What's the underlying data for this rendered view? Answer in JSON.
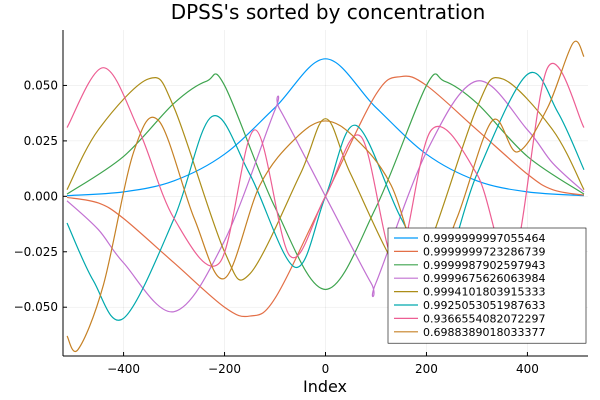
{
  "chart_data": {
    "type": "line",
    "title": "DPSS's sorted by concentration",
    "xlabel": "Index",
    "ylabel": "",
    "xlim": [
      -520,
      520
    ],
    "ylim": [
      -0.072,
      0.075
    ],
    "xticks": [
      -400,
      -200,
      0,
      200,
      400
    ],
    "xtick_labels": [
      "−400",
      "−200",
      "0",
      "200",
      "400"
    ],
    "yticks": [
      -0.05,
      -0.025,
      0,
      0.025,
      0.05
    ],
    "ytick_labels": [
      "−0.050",
      "−0.025",
      "0.000",
      "0.025",
      "0.050"
    ],
    "grid": true,
    "legend_position": "bottom-right",
    "series": [
      {
        "name": "0.9999999997055464",
        "color": "#009AFA",
        "x": [
          -512,
          -400,
          -300,
          -200,
          -100,
          0,
          100,
          200,
          300,
          400,
          512
        ],
        "y": [
          0.0003,
          0.002,
          0.007,
          0.019,
          0.04,
          0.062,
          0.04,
          0.019,
          0.007,
          0.002,
          0.0003
        ]
      },
      {
        "name": "0.9999999723286739",
        "color": "#E36F47",
        "x": [
          -512,
          -450,
          -400,
          -300,
          -200,
          -150,
          -100,
          0,
          100,
          150,
          200,
          300,
          400,
          450,
          512
        ],
        "y": [
          -0.0005,
          -0.003,
          -0.01,
          -0.03,
          -0.05,
          -0.054,
          -0.046,
          0.0,
          0.046,
          0.054,
          0.05,
          0.03,
          0.01,
          0.003,
          0.0005
        ]
      },
      {
        "name": "0.9999987902597943",
        "color": "#3EA44E",
        "x": [
          -512,
          -400,
          -300,
          -235,
          -200,
          -100,
          0,
          100,
          200,
          235,
          300,
          400,
          512
        ],
        "y": [
          0.001,
          0.018,
          0.042,
          0.052,
          0.05,
          -0.005,
          -0.042,
          -0.005,
          0.05,
          0.052,
          0.042,
          0.018,
          0.001
        ]
      },
      {
        "name": "0.9999675626063984",
        "color": "#C271D2",
        "x": [
          -512,
          -450,
          -400,
          -300,
          -200,
          -100,
          -90,
          0,
          90,
          100,
          200,
          300,
          400,
          450,
          512
        ],
        "y": [
          -0.002,
          -0.015,
          -0.03,
          -0.052,
          -0.02,
          0.039,
          0.039,
          0.0,
          -0.039,
          -0.039,
          0.02,
          0.052,
          0.03,
          0.015,
          0.002
        ]
      },
      {
        "name": "0.9994101803915333",
        "color": "#AC8D18",
        "x": [
          -512,
          -450,
          -350,
          -300,
          -200,
          -150,
          -50,
          0,
          50,
          150,
          200,
          300,
          350,
          450,
          512
        ],
        "y": [
          0.003,
          0.03,
          0.053,
          0.04,
          -0.025,
          -0.035,
          0.01,
          0.035,
          0.01,
          -0.035,
          -0.025,
          0.04,
          0.053,
          0.03,
          0.003
        ]
      },
      {
        "name": "0.9925053051987633",
        "color": "#00A9AD",
        "x": [
          -512,
          -460,
          -400,
          -300,
          -225,
          -150,
          -60,
          0,
          60,
          150,
          225,
          300,
          400,
          460,
          512
        ],
        "y": [
          -0.012,
          -0.038,
          -0.055,
          -0.01,
          0.036,
          0.01,
          -0.032,
          0.0,
          0.032,
          -0.01,
          -0.036,
          0.01,
          0.055,
          0.038,
          0.012
        ]
      },
      {
        "name": "0.9366554082072297",
        "color": "#ED5E93",
        "x": [
          -512,
          -440,
          -370,
          -300,
          -210,
          -140,
          -70,
          0,
          70,
          140,
          210,
          300,
          370,
          440,
          512
        ],
        "y": [
          0.031,
          0.058,
          0.03,
          -0.01,
          -0.03,
          0.03,
          -0.027,
          0.0,
          0.027,
          -0.03,
          0.03,
          0.01,
          -0.03,
          0.058,
          0.031
        ]
      },
      {
        "name": "0.6988389018033377",
        "color": "#C68125",
        "x": [
          -512,
          -490,
          -440,
          -380,
          -330,
          -260,
          -200,
          -130,
          -60,
          0,
          60,
          130,
          200,
          260,
          330,
          380,
          440,
          490,
          512
        ],
        "y": [
          -0.063,
          -0.069,
          -0.04,
          0.02,
          0.034,
          -0.01,
          -0.037,
          0.005,
          0.026,
          0.034,
          0.026,
          0.005,
          -0.037,
          -0.01,
          0.034,
          0.02,
          0.04,
          0.069,
          0.063
        ]
      }
    ]
  }
}
